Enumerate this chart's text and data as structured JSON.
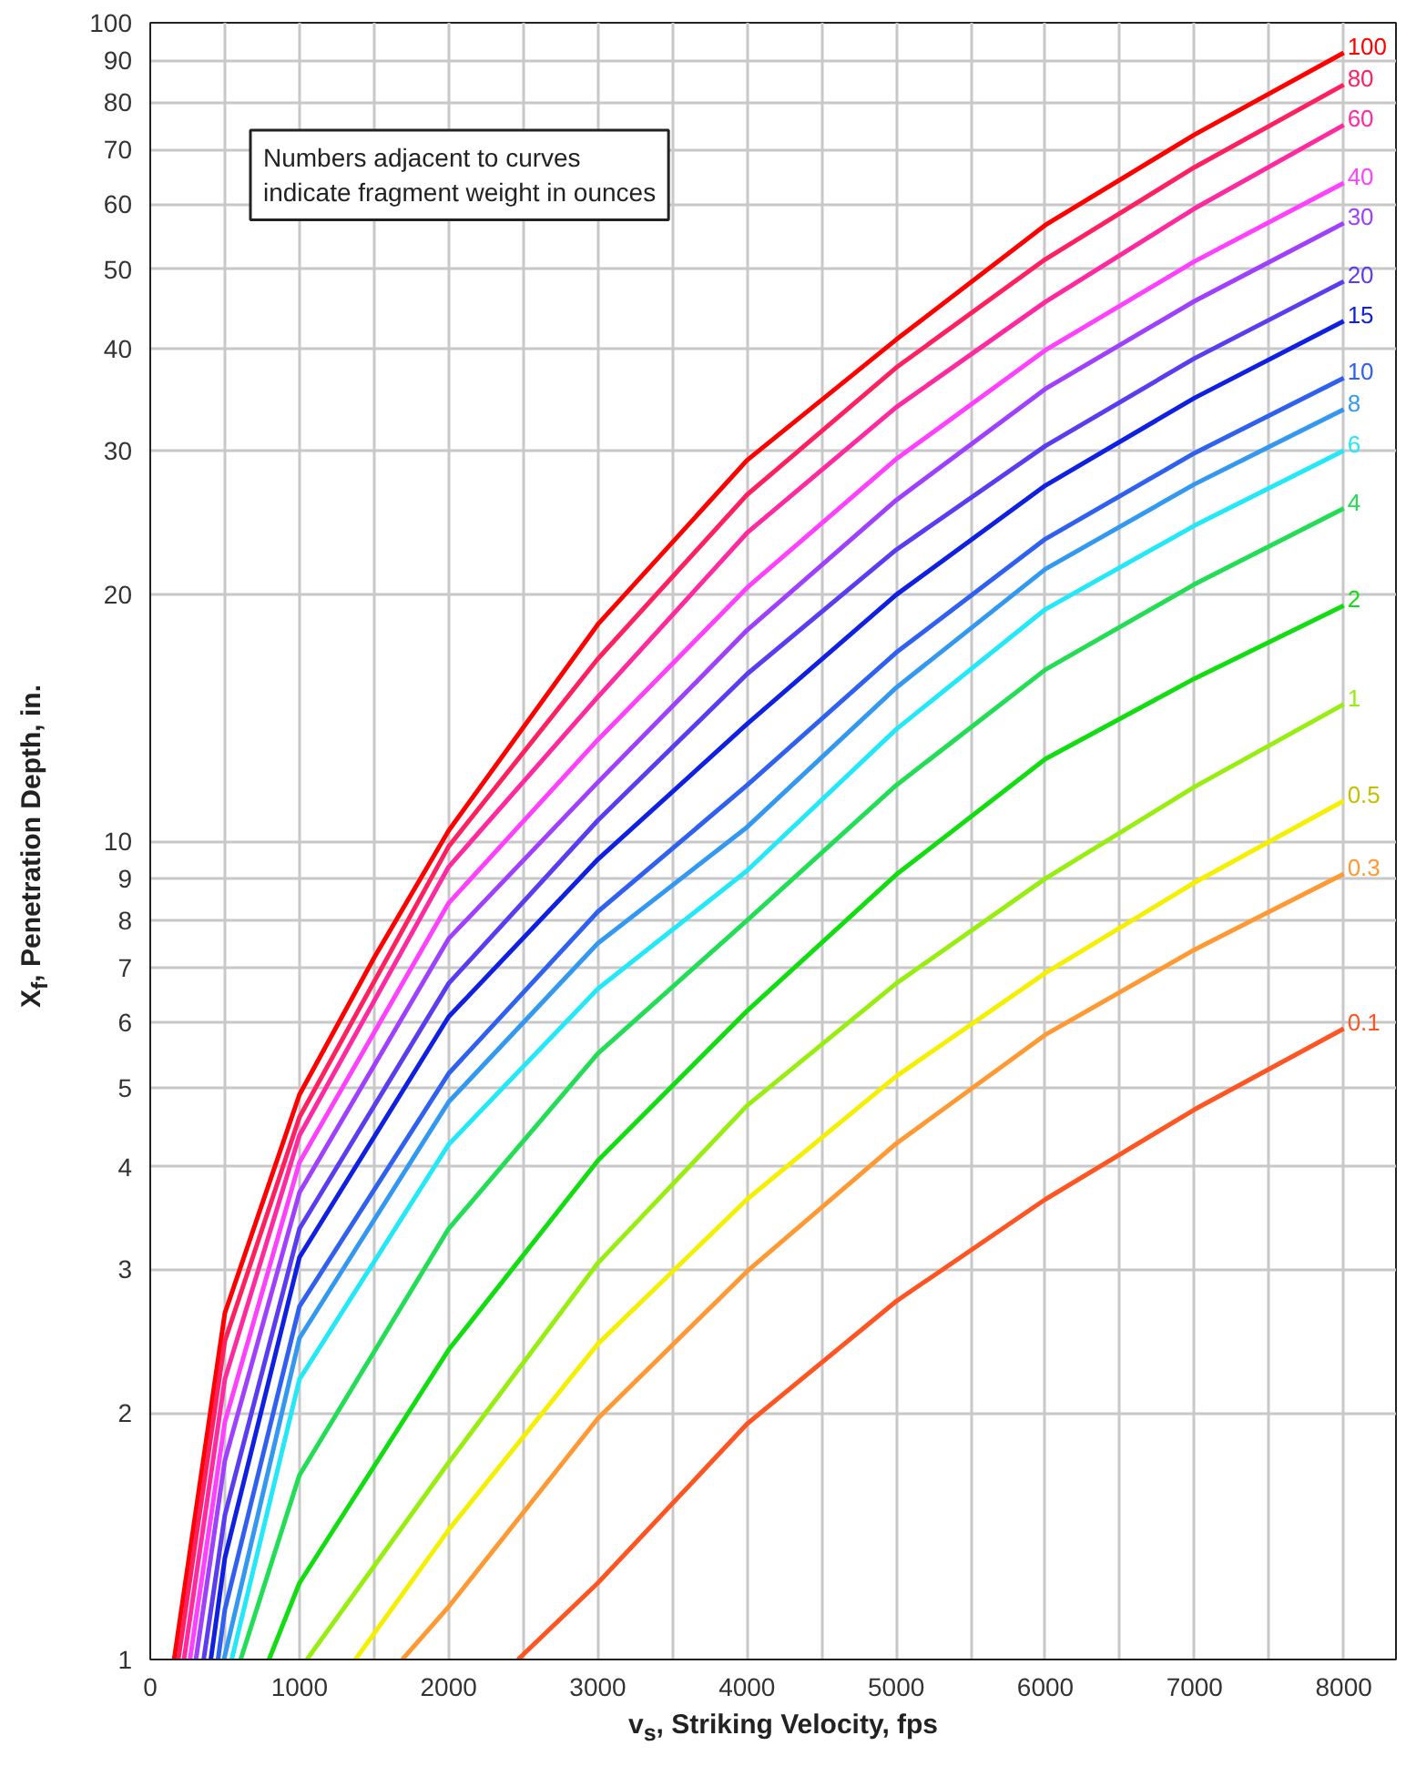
{
  "chart_data": {
    "type": "line",
    "xlabel": "v$_{s}$, Striking Velocity, fps",
    "ylabel": "X$_{f}$, Penetration Depth, in.",
    "annotations": [
      "Numbers adjacent to curves\nindicate fragment weight in ounces"
    ],
    "log": "y",
    "grid": true,
    "marker": "none",
    "line_style": "solid",
    "xlim": [
      0,
      8350
    ],
    "ylim": [
      1,
      100
    ],
    "xticks": [
      0,
      {
        "value": 500,
        "label": null
      },
      1000,
      {
        "value": 1500,
        "label": null
      },
      2000,
      {
        "value": 2500,
        "label": null
      },
      3000,
      {
        "value": 3500,
        "label": null
      },
      4000,
      {
        "value": 4500,
        "label": null
      },
      5000,
      {
        "value": 5500,
        "label": null
      },
      6000,
      {
        "value": 6500,
        "label": null
      },
      7000,
      {
        "value": 7500,
        "label": null
      },
      8000
    ],
    "yticks": [
      1,
      2,
      3,
      4,
      5,
      6,
      7,
      8,
      9,
      10,
      20,
      30,
      40,
      50,
      60,
      70,
      80,
      90,
      100
    ],
    "series": [
      {
        "name": "100",
        "color": "#ff0000",
        "x": [
          160,
          500,
          1000,
          1500,
          2000,
          3000,
          4000,
          5000,
          6000,
          7000,
          8000
        ],
        "values": [
          1,
          2.65,
          4.9,
          7.2,
          10.3,
          18.4,
          29.2,
          41,
          56.6,
          73,
          91.9
        ]
      },
      {
        "name": "80",
        "color": "#ff2060",
        "x": [
          188,
          500,
          1000,
          2000,
          3000,
          4000,
          5000,
          6000,
          7000,
          8000
        ],
        "values": [
          1,
          2.45,
          4.6,
          9.85,
          16.7,
          26.5,
          37.9,
          51.4,
          66.6,
          84
        ]
      },
      {
        "name": "60",
        "color": "#ff2aa0",
        "x": [
          226,
          500,
          1000,
          2000,
          3000,
          4000,
          5000,
          6000,
          7000,
          8000
        ],
        "values": [
          1,
          2.2,
          4.37,
          9.3,
          15,
          23.8,
          33.9,
          45.6,
          59.3,
          75
        ]
      },
      {
        "name": "40",
        "color": "#ff40ff",
        "x": [
          266,
          500,
          1000,
          2000,
          3000,
          4000,
          5000,
          6000,
          7000,
          8000
        ],
        "values": [
          1,
          1.95,
          4.05,
          8.4,
          13.3,
          20.4,
          29.3,
          39.8,
          51.1,
          63.7
        ]
      },
      {
        "name": "30",
        "color": "#a040ff",
        "x": [
          306,
          500,
          1000,
          2000,
          3000,
          4000,
          5000,
          6000,
          7000,
          8000
        ],
        "values": [
          1,
          1.75,
          3.72,
          7.6,
          11.8,
          18.1,
          26.1,
          35.7,
          45.7,
          56.9
        ]
      },
      {
        "name": "20",
        "color": "#5a3df0",
        "x": [
          358,
          500,
          1000,
          2000,
          3000,
          4000,
          5000,
          6000,
          7000,
          8000
        ],
        "values": [
          1,
          1.5,
          3.36,
          6.7,
          10.6,
          16,
          22.7,
          30.4,
          38.9,
          48.3
        ]
      },
      {
        "name": "15",
        "color": "#1020e0",
        "x": [
          406,
          500,
          1000,
          2000,
          3000,
          4000,
          5000,
          6000,
          7000,
          8000
        ],
        "values": [
          1,
          1.33,
          3.1,
          6.1,
          9.5,
          13.9,
          20,
          27.2,
          34.8,
          43.2
        ]
      },
      {
        "name": "10",
        "color": "#3060f0",
        "x": [
          454,
          500,
          1000,
          2000,
          3000,
          4000,
          5000,
          6000,
          7000,
          8000
        ],
        "values": [
          1,
          1.15,
          2.7,
          5.2,
          8.2,
          11.7,
          17,
          23.4,
          29.8,
          36.8
        ]
      },
      {
        "name": "8",
        "color": "#3399f0",
        "x": [
          494,
          1000,
          2000,
          3000,
          4000,
          5000,
          6000,
          7000,
          8000
        ],
        "values": [
          1,
          2.47,
          4.8,
          7.5,
          10.4,
          15.4,
          21.5,
          27.3,
          33.7
        ]
      },
      {
        "name": "6",
        "color": "#22e8f8",
        "x": [
          546,
          1000,
          2000,
          3000,
          4000,
          5000,
          6000,
          7000,
          8000
        ],
        "values": [
          1,
          2.2,
          4.26,
          6.6,
          9.2,
          13.7,
          19.2,
          24.3,
          30
        ]
      },
      {
        "name": "4",
        "color": "#22dd55",
        "x": [
          606,
          1000,
          2000,
          3000,
          4000,
          5000,
          6000,
          7000,
          8000
        ],
        "values": [
          1,
          1.68,
          3.36,
          5.5,
          8,
          11.7,
          16.2,
          20.6,
          25.5
        ]
      },
      {
        "name": "2",
        "color": "#11dd11",
        "x": [
          796,
          1000,
          2000,
          3000,
          4000,
          5000,
          6000,
          7000,
          8000
        ],
        "values": [
          1,
          1.24,
          2.39,
          4.07,
          6.2,
          9.1,
          12.6,
          15.8,
          19.4
        ]
      },
      {
        "name": "1",
        "color": "#99ee11",
        "x": [
          1050,
          2000,
          3000,
          4000,
          5000,
          6000,
          7000,
          8000
        ],
        "values": [
          1,
          1.74,
          3.05,
          4.75,
          6.7,
          9,
          11.65,
          14.7
        ]
      },
      {
        "name": "0.5",
        "color": "#f5f000",
        "x": [
          1375,
          2000,
          3000,
          4000,
          5000,
          6000,
          7000,
          8000
        ],
        "values": [
          1,
          1.44,
          2.43,
          3.65,
          5.16,
          6.9,
          8.9,
          11.2
        ]
      },
      {
        "name": "0.3",
        "color": "#ff9933",
        "x": [
          1690,
          2000,
          3000,
          4000,
          5000,
          6000,
          7000,
          8000
        ],
        "values": [
          1,
          1.16,
          1.97,
          2.98,
          4.27,
          5.8,
          7.37,
          9.12
        ]
      },
      {
        "name": "0.1",
        "color": "#ff5522",
        "x": [
          2465,
          3000,
          4000,
          5000,
          6000,
          7000,
          8000
        ],
        "values": [
          1,
          1.24,
          1.94,
          2.74,
          3.65,
          4.7,
          5.9
        ]
      }
    ]
  }
}
